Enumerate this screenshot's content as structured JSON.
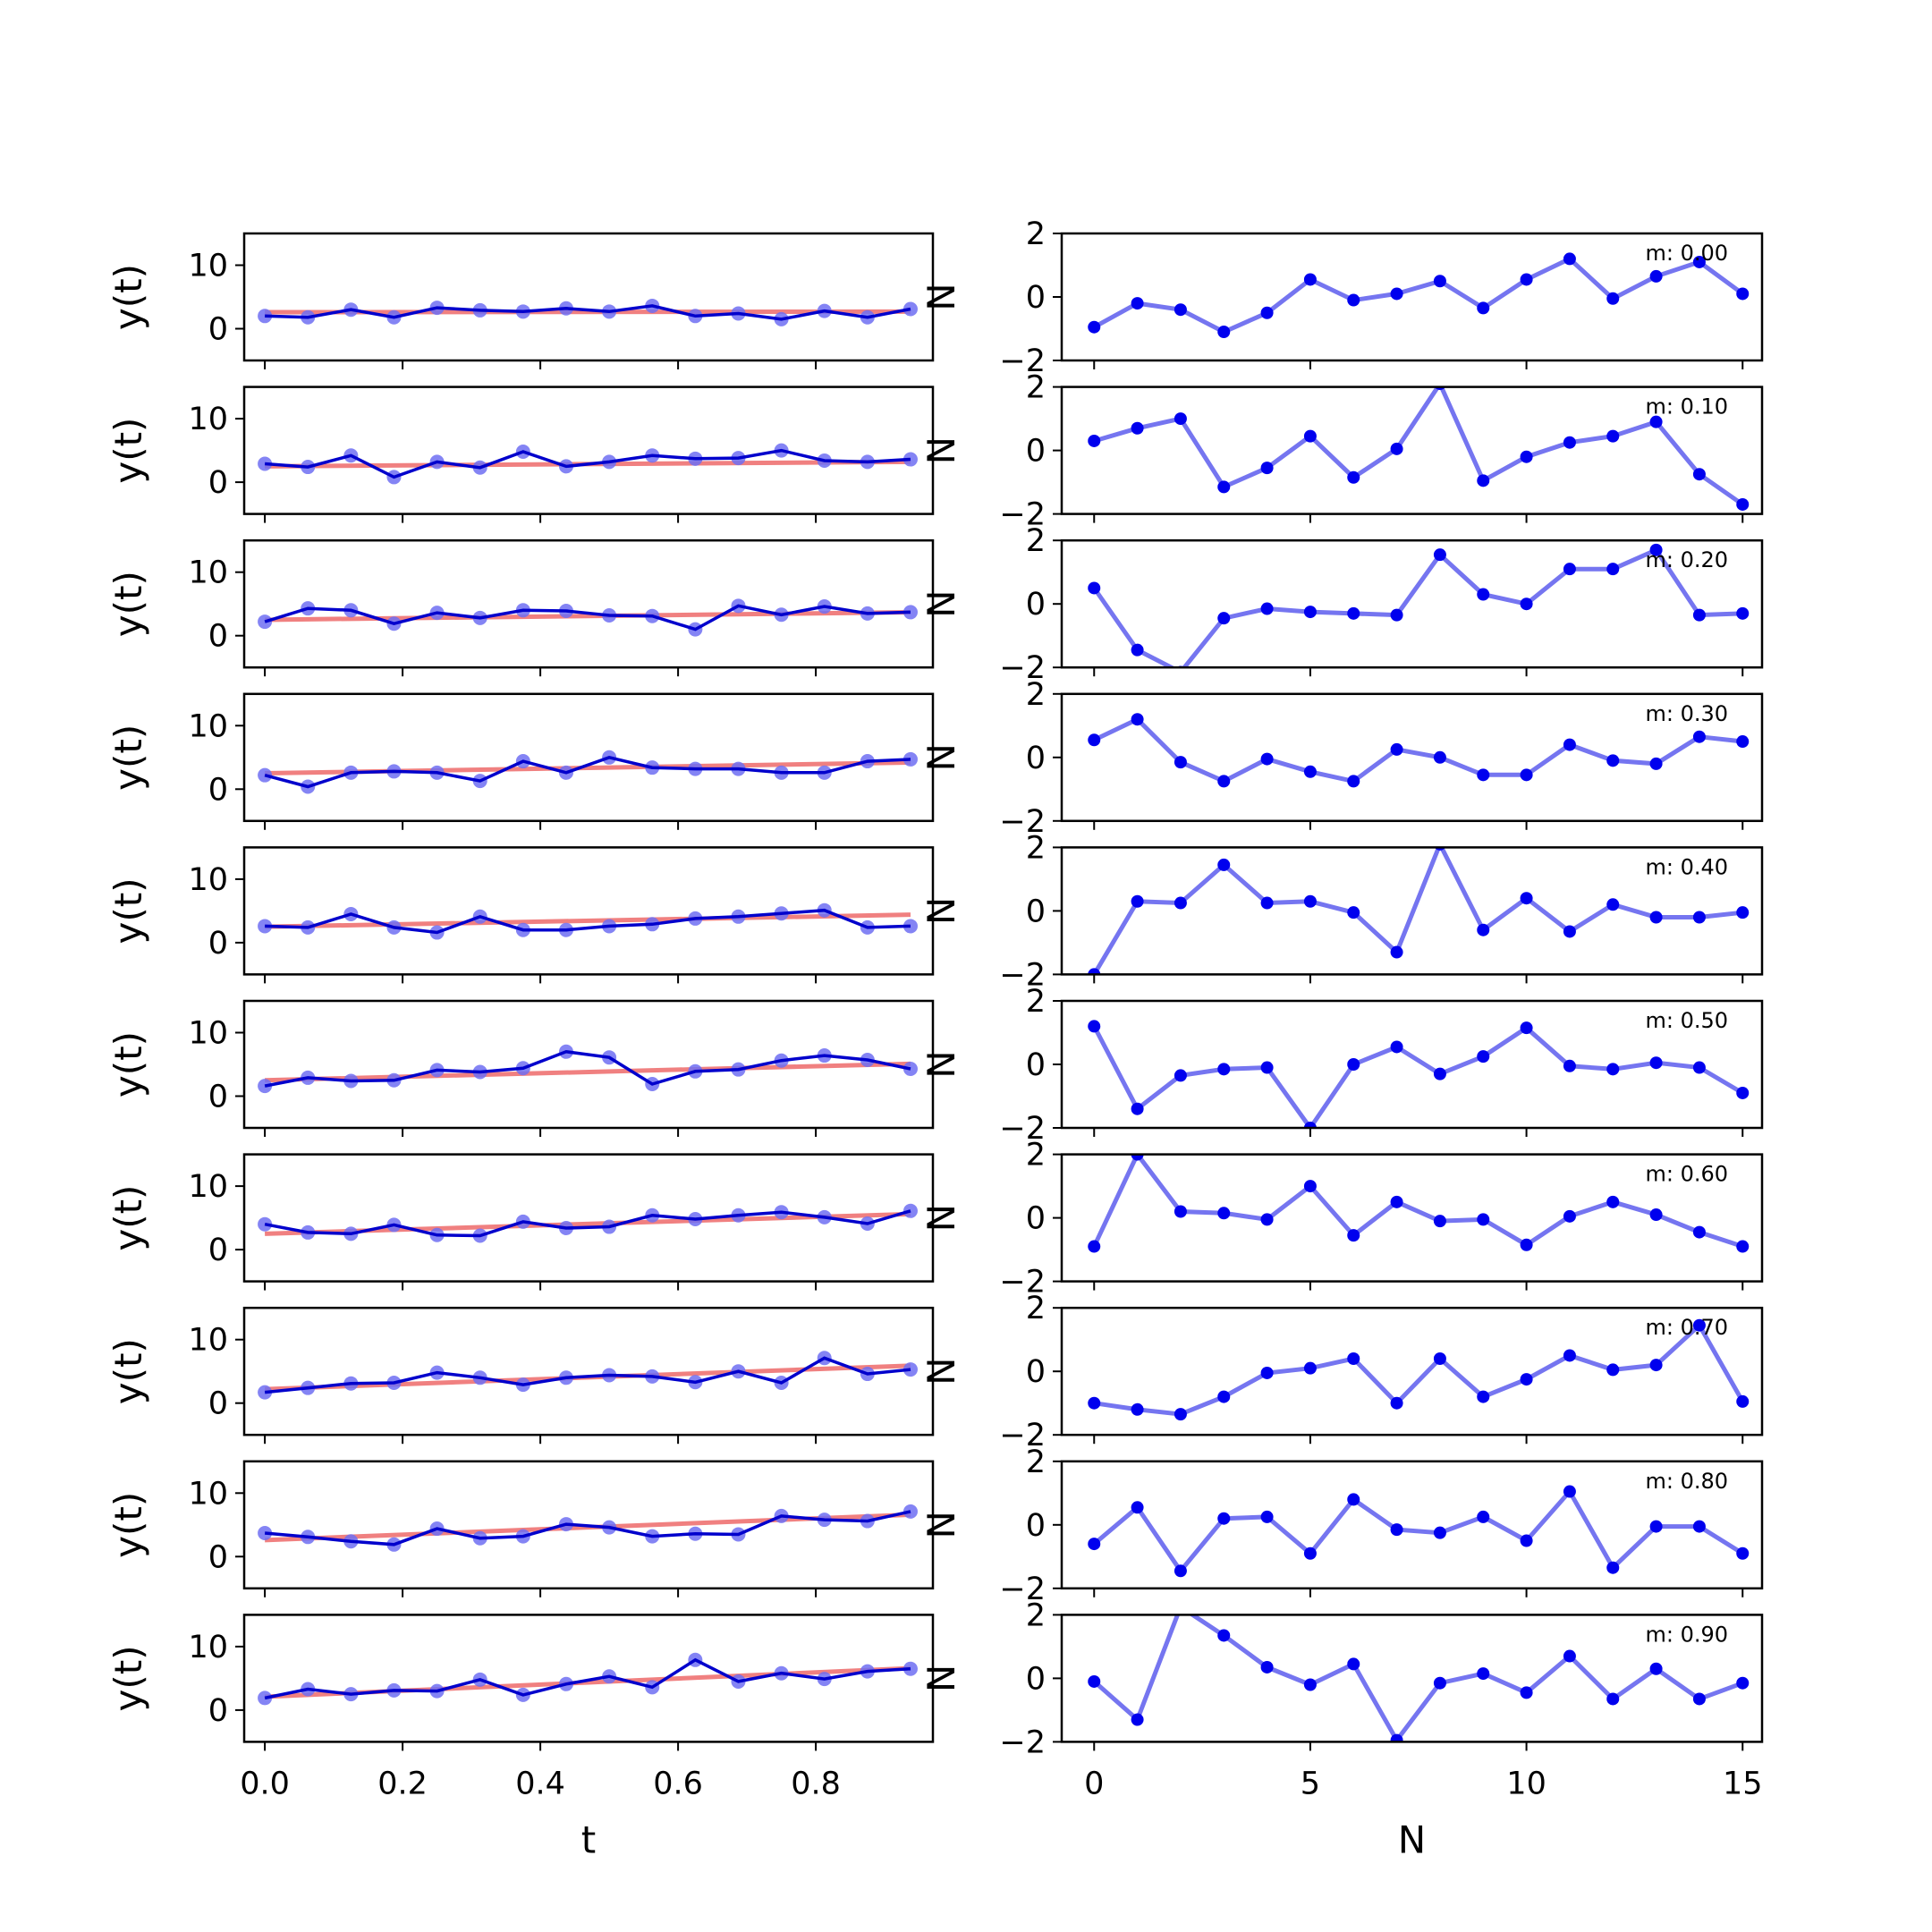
{
  "chart_data": [
    {
      "type": "line",
      "side": "left",
      "ylabel": "y(t)",
      "ylim": [
        -5,
        15
      ],
      "yticks": [
        0,
        10
      ],
      "xlabel": "t",
      "xlim": [
        -0.03,
        0.97
      ],
      "xticks": [
        0.0,
        0.2,
        0.4,
        0.6,
        0.8
      ],
      "xtick_labels": [
        "0.0",
        "0.2",
        "0.4",
        "0.6",
        "0.8"
      ],
      "colors": {
        "observed": "#0000cc",
        "markers": "#6f6ff2",
        "fit": "#f08080"
      },
      "rows": [
        {
          "t": [
            0,
            0.0625,
            0.125,
            0.1875,
            0.25,
            0.3125,
            0.375,
            0.4375,
            0.5,
            0.5625,
            0.625,
            0.6875,
            0.75,
            0.8125,
            0.875,
            0.9375
          ],
          "y": [
            2.0,
            1.8,
            3.0,
            1.8,
            3.3,
            2.9,
            2.7,
            3.2,
            2.7,
            3.6,
            2.0,
            2.4,
            1.5,
            2.8,
            1.8,
            3.1
          ],
          "fit": [
            2.6,
            2.7
          ]
        },
        {
          "t": [
            0,
            0.0625,
            0.125,
            0.1875,
            0.25,
            0.3125,
            0.375,
            0.4375,
            0.5,
            0.5625,
            0.625,
            0.6875,
            0.75,
            0.8125,
            0.875,
            0.9375
          ],
          "y": [
            2.9,
            2.4,
            4.2,
            0.8,
            3.2,
            2.3,
            4.8,
            2.5,
            3.2,
            4.2,
            3.7,
            3.8,
            5.0,
            3.4,
            3.2,
            3.6
          ],
          "fit": [
            2.5,
            3.2
          ]
        },
        {
          "t": [
            0,
            0.0625,
            0.125,
            0.1875,
            0.25,
            0.3125,
            0.375,
            0.4375,
            0.5,
            0.5625,
            0.625,
            0.6875,
            0.75,
            0.8125,
            0.875,
            0.9375
          ],
          "y": [
            2.2,
            4.3,
            4.0,
            1.9,
            3.6,
            2.8,
            4.0,
            3.9,
            3.2,
            3.1,
            1.0,
            4.7,
            3.3,
            4.6,
            3.5,
            3.7
          ],
          "fit": [
            2.5,
            3.7
          ]
        },
        {
          "t": [
            0,
            0.0625,
            0.125,
            0.1875,
            0.25,
            0.3125,
            0.375,
            0.4375,
            0.5,
            0.5625,
            0.625,
            0.6875,
            0.75,
            0.8125,
            0.875,
            0.9375
          ],
          "y": [
            2.2,
            0.4,
            2.6,
            2.8,
            2.6,
            1.3,
            4.4,
            2.6,
            5.0,
            3.4,
            3.2,
            3.2,
            2.6,
            2.6,
            4.4,
            4.7
          ],
          "fit": [
            2.5,
            4.2
          ]
        },
        {
          "t": [
            0,
            0.0625,
            0.125,
            0.1875,
            0.25,
            0.3125,
            0.375,
            0.4375,
            0.5,
            0.5625,
            0.625,
            0.6875,
            0.75,
            0.8125,
            0.875,
            0.9375
          ],
          "y": [
            2.6,
            2.4,
            4.5,
            2.4,
            1.6,
            4.1,
            2.0,
            2.0,
            2.6,
            2.9,
            3.8,
            4.1,
            4.6,
            5.1,
            2.4,
            2.6
          ],
          "fit": [
            2.5,
            4.4
          ]
        },
        {
          "t": [
            0,
            0.0625,
            0.125,
            0.1875,
            0.25,
            0.3125,
            0.375,
            0.4375,
            0.5,
            0.5625,
            0.625,
            0.6875,
            0.75,
            0.8125,
            0.875,
            0.9375
          ],
          "y": [
            1.6,
            2.9,
            2.4,
            2.5,
            4.1,
            3.8,
            4.4,
            7.0,
            6.1,
            1.9,
            3.9,
            4.2,
            5.6,
            6.4,
            5.7,
            4.3
          ],
          "fit": [
            2.5,
            5.1
          ]
        },
        {
          "t": [
            0,
            0.0625,
            0.125,
            0.1875,
            0.25,
            0.3125,
            0.375,
            0.4375,
            0.5,
            0.5625,
            0.625,
            0.6875,
            0.75,
            0.8125,
            0.875,
            0.9375
          ],
          "y": [
            4.0,
            2.7,
            2.5,
            3.9,
            2.3,
            2.2,
            4.4,
            3.4,
            3.6,
            5.4,
            4.8,
            5.4,
            5.9,
            5.1,
            4.1,
            6.1
          ],
          "fit": [
            2.5,
            5.6
          ]
        },
        {
          "t": [
            0,
            0.0625,
            0.125,
            0.1875,
            0.25,
            0.3125,
            0.375,
            0.4375,
            0.5,
            0.5625,
            0.625,
            0.6875,
            0.75,
            0.8125,
            0.875,
            0.9375
          ],
          "y": [
            1.7,
            2.4,
            3.1,
            3.2,
            4.8,
            4.0,
            2.9,
            4.0,
            4.4,
            4.2,
            3.3,
            5.0,
            3.2,
            7.1,
            4.6,
            5.3
          ],
          "fit": [
            2.2,
            5.9
          ]
        },
        {
          "t": [
            0,
            0.0625,
            0.125,
            0.1875,
            0.25,
            0.3125,
            0.375,
            0.4375,
            0.5,
            0.5625,
            0.625,
            0.6875,
            0.75,
            0.8125,
            0.875,
            0.9375
          ],
          "y": [
            3.7,
            3.1,
            2.4,
            1.9,
            4.4,
            2.9,
            3.2,
            5.1,
            4.6,
            3.2,
            3.6,
            3.5,
            6.4,
            5.8,
            5.6,
            7.1
          ],
          "fit": [
            2.6,
            6.6
          ]
        },
        {
          "t": [
            0,
            0.0625,
            0.125,
            0.1875,
            0.25,
            0.3125,
            0.375,
            0.4375,
            0.5,
            0.5625,
            0.625,
            0.6875,
            0.75,
            0.8125,
            0.875,
            0.9375
          ],
          "y": [
            1.9,
            3.3,
            2.5,
            3.1,
            3.0,
            4.8,
            2.4,
            4.1,
            5.3,
            3.6,
            7.9,
            4.5,
            5.8,
            4.9,
            6.1,
            6.5
          ],
          "fit": [
            2.1,
            6.6
          ]
        }
      ]
    },
    {
      "type": "line",
      "side": "right",
      "ylabel": "N",
      "ylim": [
        -2,
        2
      ],
      "yticks": [
        -2,
        0,
        2
      ],
      "xlabel": "N",
      "xlim": [
        -0.75,
        15.45
      ],
      "xticks": [
        0,
        5,
        10,
        15
      ],
      "xtick_labels": [
        "0",
        "5",
        "10",
        "15"
      ],
      "colors": {
        "line": "#7575f0",
        "markers": "#0000ee"
      },
      "x": [
        0,
        1,
        2,
        3,
        4,
        5,
        6,
        7,
        8,
        9,
        10,
        11,
        12,
        13,
        14,
        15
      ],
      "rows": [
        {
          "label": "m: 0.00",
          "y": [
            -0.95,
            -0.2,
            -0.4,
            -1.1,
            -0.5,
            0.55,
            -0.1,
            0.1,
            0.5,
            -0.35,
            0.55,
            1.2,
            -0.05,
            0.65,
            1.1,
            0.1
          ]
        },
        {
          "label": "m: 0.10",
          "y": [
            0.3,
            0.7,
            1.0,
            -1.15,
            -0.55,
            0.45,
            -0.85,
            0.05,
            2.1,
            -0.95,
            -0.2,
            0.25,
            0.45,
            0.9,
            -0.75,
            -1.7
          ]
        },
        {
          "label": "m: 0.20",
          "y": [
            0.5,
            -1.45,
            -2.15,
            -0.45,
            -0.15,
            -0.25,
            -0.3,
            -0.35,
            1.55,
            0.3,
            0.0,
            1.1,
            1.1,
            1.7,
            -0.35,
            -0.3
          ]
        },
        {
          "label": "m: 0.30",
          "y": [
            0.55,
            1.2,
            -0.15,
            -0.75,
            -0.05,
            -0.45,
            -0.75,
            0.25,
            0.0,
            -0.55,
            -0.55,
            0.4,
            -0.1,
            -0.2,
            0.65,
            0.5
          ]
        },
        {
          "label": "m: 0.40",
          "y": [
            -2.0,
            0.3,
            0.25,
            1.45,
            0.25,
            0.3,
            -0.05,
            -1.3,
            2.1,
            -0.6,
            0.4,
            -0.65,
            0.2,
            -0.2,
            -0.2,
            -0.05
          ]
        },
        {
          "label": "m: 0.50",
          "y": [
            1.2,
            -1.4,
            -0.35,
            -0.15,
            -0.1,
            -2.0,
            0.0,
            0.55,
            -0.3,
            0.25,
            1.15,
            -0.05,
            -0.15,
            0.05,
            -0.1,
            -0.9
          ]
        },
        {
          "label": "m: 0.60",
          "y": [
            -0.9,
            2.0,
            0.2,
            0.15,
            -0.05,
            1.0,
            -0.55,
            0.5,
            -0.1,
            -0.05,
            -0.85,
            0.05,
            0.5,
            0.1,
            -0.45,
            -0.9
          ]
        },
        {
          "label": "m: 0.70",
          "y": [
            -1.0,
            -1.2,
            -1.35,
            -0.8,
            -0.05,
            0.1,
            0.4,
            -1.0,
            0.4,
            -0.8,
            -0.25,
            0.5,
            0.05,
            0.2,
            1.45,
            -0.95
          ]
        },
        {
          "label": "m: 0.80",
          "y": [
            -0.6,
            0.55,
            -1.45,
            0.2,
            0.25,
            -0.9,
            0.8,
            -0.15,
            -0.25,
            0.25,
            -0.5,
            1.05,
            -1.35,
            -0.05,
            -0.05,
            -0.9
          ]
        },
        {
          "label": "m: 0.90",
          "y": [
            -0.1,
            -1.3,
            2.25,
            1.35,
            0.35,
            -0.2,
            0.45,
            -1.95,
            -0.15,
            0.15,
            -0.45,
            0.7,
            -0.65,
            0.3,
            -0.65,
            -0.15
          ]
        }
      ]
    }
  ]
}
